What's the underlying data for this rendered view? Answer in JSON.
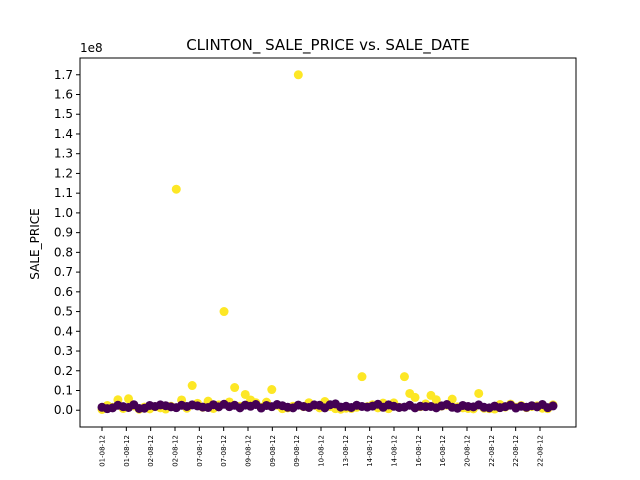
{
  "chart_data": {
    "type": "scatter",
    "title": "CLINTON_ SALE_PRICE vs. SALE_DATE",
    "xlabel": "",
    "ylabel": "SALE_PRICE",
    "y_offset_label": "1e8",
    "ylim": [
      -8500000,
      178500000
    ],
    "y_ticks": [
      0,
      10000000,
      20000000,
      30000000,
      40000000,
      50000000,
      60000000,
      70000000,
      80000000,
      90000000,
      100000000,
      110000000,
      120000000,
      130000000,
      140000000,
      150000000,
      160000000,
      170000000
    ],
    "y_tick_labels": [
      "0.0",
      "0.1",
      "0.2",
      "0.3",
      "0.4",
      "0.5",
      "0.6",
      "0.7",
      "0.8",
      "0.9",
      "1.0",
      "1.1",
      "1.2",
      "1.3",
      "1.4",
      "1.5",
      "1.6",
      "1.7"
    ],
    "x_tick_labels": [
      "01-08-12",
      "01-08-12",
      "02-08-12",
      "02-08-12",
      "07-08-12",
      "07-08-12",
      "09-08-12",
      "09-08-12",
      "09-08-12",
      "10-08-12",
      "13-08-12",
      "14-08-12",
      "14-08-12",
      "16-08-12",
      "16-08-12",
      "20-08-12",
      "22-08-12",
      "22-08-12",
      "22-08-12"
    ],
    "colors": {
      "yellow": "#fde725",
      "purple": "#440154"
    },
    "series": [
      {
        "color": "yellow",
        "points": [
          [
            0,
            400000
          ],
          [
            1,
            2400000
          ],
          [
            2,
            1500000
          ],
          [
            3,
            5300000
          ],
          [
            4,
            900000
          ],
          [
            5,
            5800000
          ],
          [
            6,
            2200000
          ],
          [
            7,
            500000
          ],
          [
            8,
            1600000
          ],
          [
            9,
            700000
          ],
          [
            10,
            1800000
          ],
          [
            11,
            1200000
          ],
          [
            12,
            600000
          ],
          [
            13,
            2000000
          ],
          [
            14,
            112000000
          ],
          [
            15,
            5200000
          ],
          [
            16,
            1000000
          ],
          [
            17,
            12500000
          ],
          [
            18,
            3500000
          ],
          [
            19,
            1500000
          ],
          [
            20,
            4600000
          ],
          [
            21,
            900000
          ],
          [
            22,
            2700000
          ],
          [
            23,
            50000000
          ],
          [
            24,
            4200000
          ],
          [
            25,
            11500000
          ],
          [
            26,
            2000000
          ],
          [
            27,
            8000000
          ],
          [
            28,
            5200000
          ],
          [
            29,
            3800000
          ],
          [
            30,
            1500000
          ],
          [
            31,
            4100000
          ],
          [
            32,
            10500000
          ],
          [
            33,
            2500000
          ],
          [
            34,
            800000
          ],
          [
            35,
            1200000
          ],
          [
            36,
            2000000
          ],
          [
            37,
            170000000
          ],
          [
            38,
            1800000
          ],
          [
            39,
            3800000
          ],
          [
            40,
            2500000
          ],
          [
            41,
            1200000
          ],
          [
            42,
            4400000
          ],
          [
            43,
            1900000
          ],
          [
            44,
            800000
          ],
          [
            45,
            500000
          ],
          [
            46,
            1000000
          ],
          [
            47,
            900000
          ],
          [
            48,
            1500000
          ],
          [
            49,
            17000000
          ],
          [
            50,
            1800000
          ],
          [
            51,
            2800000
          ],
          [
            52,
            1200000
          ],
          [
            53,
            3600000
          ],
          [
            54,
            800000
          ],
          [
            55,
            3700000
          ],
          [
            56,
            1500000
          ],
          [
            57,
            17000000
          ],
          [
            58,
            8500000
          ],
          [
            59,
            6500000
          ],
          [
            60,
            1800000
          ],
          [
            61,
            3200000
          ],
          [
            62,
            7500000
          ],
          [
            63,
            5300000
          ],
          [
            64,
            2100000
          ],
          [
            65,
            2600000
          ],
          [
            66,
            5600000
          ],
          [
            67,
            1700000
          ],
          [
            68,
            1200000
          ],
          [
            69,
            900000
          ],
          [
            70,
            700000
          ],
          [
            71,
            8500000
          ],
          [
            72,
            1000000
          ],
          [
            73,
            800000
          ],
          [
            74,
            600000
          ],
          [
            75,
            2900000
          ],
          [
            76,
            1600000
          ],
          [
            77,
            3100000
          ],
          [
            78,
            1500000
          ],
          [
            79,
            2400000
          ],
          [
            80,
            1300000
          ],
          [
            81,
            1900000
          ],
          [
            82,
            2200000
          ],
          [
            83,
            1000000
          ],
          [
            84,
            800000
          ],
          [
            85,
            2700000
          ]
        ]
      },
      {
        "color": "purple",
        "points": [
          [
            0,
            1500000
          ],
          [
            1,
            800000
          ],
          [
            2,
            1200000
          ],
          [
            3,
            2500000
          ],
          [
            4,
            1800000
          ],
          [
            5,
            1400000
          ],
          [
            6,
            2800000
          ],
          [
            7,
            900000
          ],
          [
            8,
            1000000
          ],
          [
            9,
            2400000
          ],
          [
            10,
            1900000
          ],
          [
            11,
            2700000
          ],
          [
            12,
            2300000
          ],
          [
            13,
            1700000
          ],
          [
            14,
            1300000
          ],
          [
            15,
            2500000
          ],
          [
            16,
            1900000
          ],
          [
            17,
            2700000
          ],
          [
            18,
            2200000
          ],
          [
            19,
            1600000
          ],
          [
            20,
            1400000
          ],
          [
            21,
            2800000
          ],
          [
            22,
            1700000
          ],
          [
            23,
            3000000
          ],
          [
            24,
            1800000
          ],
          [
            25,
            2500000
          ],
          [
            26,
            1200000
          ],
          [
            27,
            2600000
          ],
          [
            28,
            2000000
          ],
          [
            29,
            2900000
          ],
          [
            30,
            1100000
          ],
          [
            31,
            2400000
          ],
          [
            32,
            1800000
          ],
          [
            33,
            2900000
          ],
          [
            34,
            2300000
          ],
          [
            35,
            1500000
          ],
          [
            36,
            1200000
          ],
          [
            37,
            2600000
          ],
          [
            38,
            1900000
          ],
          [
            39,
            1400000
          ],
          [
            40,
            2700000
          ],
          [
            41,
            2500000
          ],
          [
            42,
            1200000
          ],
          [
            43,
            2800000
          ],
          [
            44,
            3200000
          ],
          [
            45,
            1600000
          ],
          [
            46,
            2000000
          ],
          [
            47,
            1400000
          ],
          [
            48,
            2500000
          ],
          [
            49,
            1900000
          ],
          [
            50,
            1600000
          ],
          [
            51,
            2100000
          ],
          [
            52,
            3000000
          ],
          [
            53,
            1500000
          ],
          [
            54,
            2700000
          ],
          [
            55,
            2000000
          ],
          [
            56,
            1400000
          ],
          [
            57,
            1600000
          ],
          [
            58,
            2500000
          ],
          [
            59,
            1200000
          ],
          [
            60,
            2000000
          ],
          [
            61,
            1800000
          ],
          [
            62,
            1900000
          ],
          [
            63,
            1200000
          ],
          [
            64,
            2200000
          ],
          [
            65,
            2900000
          ],
          [
            66,
            1500000
          ],
          [
            67,
            1000000
          ],
          [
            68,
            2400000
          ],
          [
            69,
            1900000
          ],
          [
            70,
            1700000
          ],
          [
            71,
            2700000
          ],
          [
            72,
            1500000
          ],
          [
            73,
            1200000
          ],
          [
            74,
            2100000
          ],
          [
            75,
            1300000
          ],
          [
            76,
            1800000
          ],
          [
            77,
            2600000
          ],
          [
            78,
            1100000
          ],
          [
            79,
            2000000
          ],
          [
            80,
            1500000
          ],
          [
            81,
            2300000
          ],
          [
            82,
            1700000
          ],
          [
            83,
            2900000
          ],
          [
            84,
            1300000
          ],
          [
            85,
            2200000
          ]
        ]
      }
    ]
  }
}
